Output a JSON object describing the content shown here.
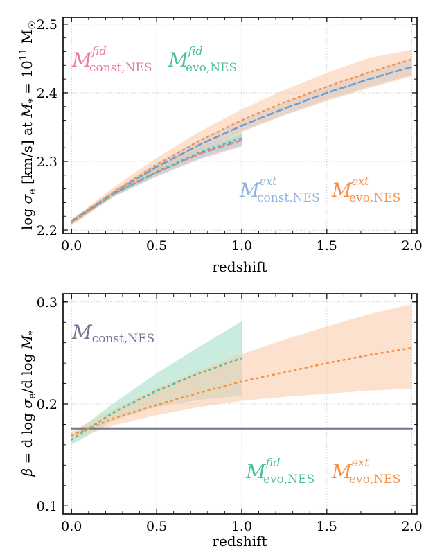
{
  "chart_data": [
    {
      "type": "line",
      "xlabel": "redshift",
      "ylabel": "log σe [km/s] at M* = 10^11 M☉",
      "ylabel_parts": {
        "a": "log ",
        "b": "σ",
        "c": "e",
        "d": " [km/s] at ",
        "e": "M",
        "f": "*",
        "g": " = 10",
        "h": "11",
        "i": " M",
        "j": "☉"
      },
      "xlim": [
        -0.05,
        2.03
      ],
      "ylim": [
        2.195,
        2.51
      ],
      "xticks": [
        0.0,
        0.5,
        1.0,
        1.5,
        2.0
      ],
      "xtick_labels": [
        "0.0",
        "0.5",
        "1.0",
        "1.5",
        "2.0"
      ],
      "yticks": [
        2.2,
        2.3,
        2.4,
        2.5
      ],
      "ytick_labels": [
        "2.2",
        "2.3",
        "2.4",
        "2.5"
      ],
      "grid": true,
      "series": [
        {
          "name": "M fid const,NES",
          "style": "dashed",
          "color": "#e67aa8",
          "band_color": "#f2a6c6",
          "x": [
            0.0,
            0.25,
            0.5,
            0.75,
            1.0
          ],
          "y": [
            2.212,
            2.253,
            2.284,
            2.311,
            2.331
          ],
          "lo": [
            2.209,
            2.249,
            2.278,
            2.303,
            2.322
          ],
          "hi": [
            2.215,
            2.257,
            2.29,
            2.318,
            2.34
          ]
        },
        {
          "name": "M fid evo,NES",
          "style": "dotted",
          "color": "#4dbf9a",
          "band_color": "#9fdcc4",
          "x": [
            0.0,
            0.25,
            0.5,
            0.75,
            1.0
          ],
          "y": [
            2.211,
            2.253,
            2.285,
            2.313,
            2.334
          ],
          "lo": [
            2.207,
            2.249,
            2.279,
            2.305,
            2.324
          ],
          "hi": [
            2.215,
            2.257,
            2.291,
            2.321,
            2.344
          ]
        },
        {
          "name": "M ext const,NES",
          "style": "dashed",
          "color": "#6f9fcf",
          "band_color": "#a9c8e6",
          "x": [
            0.0,
            0.25,
            0.5,
            0.75,
            1.0,
            1.25,
            1.5,
            1.75,
            2.0
          ],
          "y": [
            2.213,
            2.255,
            2.292,
            2.324,
            2.352,
            2.377,
            2.4,
            2.42,
            2.438
          ],
          "lo": [
            2.21,
            2.251,
            2.286,
            2.317,
            2.344,
            2.368,
            2.39,
            2.409,
            2.426
          ],
          "hi": [
            2.216,
            2.259,
            2.298,
            2.331,
            2.36,
            2.386,
            2.41,
            2.431,
            2.45
          ]
        },
        {
          "name": "M ext evo,NES",
          "style": "dotted",
          "color": "#f79045",
          "band_color": "#fac9a6",
          "x": [
            0.0,
            0.25,
            0.5,
            0.75,
            1.0,
            1.25,
            1.5,
            1.75,
            2.0
          ],
          "y": [
            2.211,
            2.256,
            2.295,
            2.33,
            2.36,
            2.386,
            2.409,
            2.43,
            2.449
          ],
          "lo": [
            2.207,
            2.249,
            2.285,
            2.316,
            2.343,
            2.367,
            2.388,
            2.407,
            2.424
          ],
          "hi": [
            2.215,
            2.263,
            2.305,
            2.343,
            2.376,
            2.404,
            2.429,
            2.451,
            2.463
          ]
        }
      ]
    },
    {
      "type": "line",
      "xlabel": "redshift",
      "ylabel": "β = d log σe / d log M*",
      "ylabel_parts": {
        "a": "β",
        "b": " = d log ",
        "c": "σ",
        "d": "e",
        "e": "/d log ",
        "f": "M",
        "g": "*"
      },
      "xlim": [
        -0.05,
        2.03
      ],
      "ylim": [
        0.092,
        0.308
      ],
      "xticks": [
        0.0,
        0.5,
        1.0,
        1.5,
        2.0
      ],
      "xtick_labels": [
        "0.0",
        "0.5",
        "1.0",
        "1.5",
        "2.0"
      ],
      "yticks": [
        0.1,
        0.2,
        0.3
      ],
      "ytick_labels": [
        "0.1",
        "0.2",
        "0.3"
      ],
      "grid": true,
      "series": [
        {
          "name": "M const,NES",
          "style": "solid",
          "color": "#6e7590",
          "x": [
            0.0,
            2.0
          ],
          "y": [
            0.176,
            0.176
          ]
        },
        {
          "name": "M fid evo,NES",
          "style": "dotted",
          "color": "#4dbf9a",
          "band_color": "#9fdcc4",
          "x": [
            0.0,
            0.25,
            0.5,
            0.75,
            1.0
          ],
          "y": [
            0.165,
            0.192,
            0.213,
            0.23,
            0.245
          ],
          "lo": [
            0.16,
            0.184,
            0.197,
            0.204,
            0.208
          ],
          "hi": [
            0.17,
            0.201,
            0.23,
            0.256,
            0.281
          ]
        },
        {
          "name": "M ext evo,NES",
          "style": "dotted",
          "color": "#f79045",
          "band_color": "#fac9a6",
          "x": [
            0.0,
            0.25,
            0.5,
            0.75,
            1.0,
            1.25,
            1.5,
            1.75,
            2.0
          ],
          "y": [
            0.169,
            0.186,
            0.199,
            0.211,
            0.222,
            0.231,
            0.24,
            0.248,
            0.255
          ],
          "lo": [
            0.165,
            0.179,
            0.189,
            0.197,
            0.203,
            0.207,
            0.21,
            0.213,
            0.215
          ],
          "hi": [
            0.173,
            0.195,
            0.215,
            0.233,
            0.249,
            0.263,
            0.276,
            0.288,
            0.298
          ]
        }
      ]
    }
  ],
  "annotations_top": [
    {
      "id": "fid-const",
      "sym": "M",
      "sup": "fid",
      "sub": "const,NES",
      "color": "#e67aa8"
    },
    {
      "id": "fid-evo",
      "sym": "M",
      "sup": "fid",
      "sub": "evo,NES",
      "color": "#4dbf9a"
    },
    {
      "id": "ext-const",
      "sym": "M",
      "sup": "ext",
      "sub": "const,NES",
      "color": "#8fb4dc"
    },
    {
      "id": "ext-evo",
      "sym": "M",
      "sup": "ext",
      "sub": "evo,NES",
      "color": "#f79045"
    }
  ],
  "annotations_bottom": [
    {
      "id": "const",
      "sym": "M",
      "sup": "",
      "sub": "const,NES",
      "color": "#6e7590"
    },
    {
      "id": "fid-evo",
      "sym": "M",
      "sup": "fid",
      "sub": "evo,NES",
      "color": "#4dbf9a"
    },
    {
      "id": "ext-evo",
      "sym": "M",
      "sup": "ext",
      "sub": "evo,NES",
      "color": "#f79045"
    }
  ]
}
